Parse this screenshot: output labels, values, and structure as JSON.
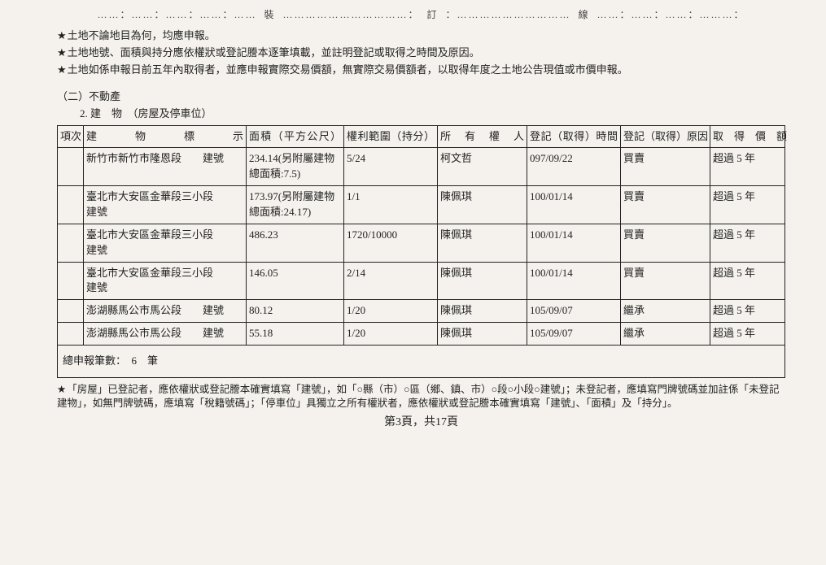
{
  "binding": {
    "zhuang": "裝",
    "ding": "訂",
    "xian": "線"
  },
  "notes": [
    "土地不論地目為何，均應申報。",
    "土地地號、面積與持分應依權狀或登記謄本逐筆填載，並註明登記或取得之時間及原因。",
    "土地如係申報日前五年內取得者，並應申報實際交易價額，無實際交易價額者，以取得年度之土地公告現值或市價申報。"
  ],
  "section": "（二）不動產",
  "subsection": "2. 建　物　（房屋及停車位）",
  "headers": {
    "idx": "項次",
    "desc": "建　物　標　示",
    "area": "面積（平方公尺）",
    "share": "權利範圍（持分）",
    "owner": "所　有　權　人",
    "date": "登記（取得）時間",
    "reason": "登記（取得）原因",
    "value": "取　得　價　額"
  },
  "rows": [
    {
      "idx": "",
      "desc": "新竹市新竹市隆恩段　　建號",
      "area": "234.14(另附屬建物總面積:7.5)",
      "share": "5/24",
      "owner": "柯文哲",
      "date": "097/09/22",
      "reason": "買賣",
      "value": "超過 5 年"
    },
    {
      "idx": "",
      "desc": "臺北市大安區金華段三小段　　建號",
      "area": "173.97(另附屬建物總面積:24.17)",
      "share": "1/1",
      "owner": "陳佩琪",
      "date": "100/01/14",
      "reason": "買賣",
      "value": "超過 5 年"
    },
    {
      "idx": "",
      "desc": "臺北市大安區金華段三小段　　建號",
      "area": "486.23",
      "share": "1720/10000",
      "owner": "陳佩琪",
      "date": "100/01/14",
      "reason": "買賣",
      "value": "超過 5 年"
    },
    {
      "idx": "",
      "desc": "臺北市大安區金華段三小段　　建號",
      "area": "146.05",
      "share": "2/14",
      "owner": "陳佩琪",
      "date": "100/01/14",
      "reason": "買賣",
      "value": "超過 5 年"
    },
    {
      "idx": "",
      "desc": "澎湖縣馬公市馬公段　　建號",
      "area": "80.12",
      "share": "1/20",
      "owner": "陳佩琪",
      "date": "105/09/07",
      "reason": "繼承",
      "value": "超過 5 年"
    },
    {
      "idx": "",
      "desc": "澎湖縣馬公市馬公段　　建號",
      "area": "55.18",
      "share": "1/20",
      "owner": "陳佩琪",
      "date": "105/09/07",
      "reason": "繼承",
      "value": "超過 5 年"
    }
  ],
  "count_label": "總申報筆數：　6　筆",
  "footnote": "「房屋」已登記者，應依權狀或登記謄本確實填寫「建號」，如「○縣（市）○區（鄉、鎮、市）○段○小段○建號」；未登記者，應填寫門牌號碼並加註係「未登記建物」，如無門牌號碼，應填寫「稅籍號碼」；「停車位」具獨立之所有權狀者，應依權狀或登記謄本確實填寫「建號」、「面積」及「持分」。",
  "page_label": "第3頁，共17頁"
}
